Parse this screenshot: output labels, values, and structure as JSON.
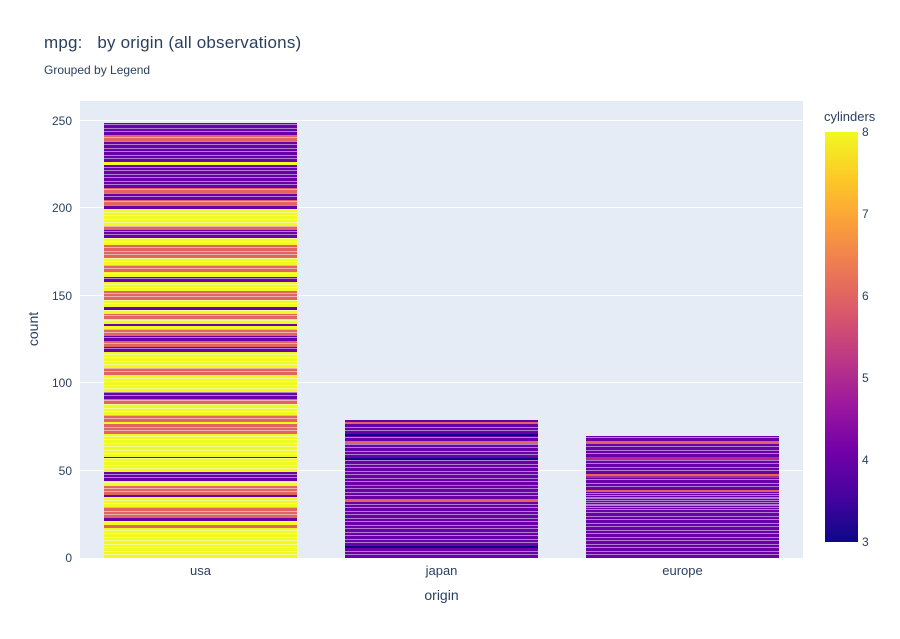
{
  "chart_data": {
    "type": "bar",
    "mode": "stacked-observations",
    "title": "mpg:   by origin (all observations)",
    "subtitle": "Grouped by Legend",
    "xlabel": "origin",
    "ylabel": "count",
    "categories": [
      "usa",
      "japan",
      "europe"
    ],
    "totals": [
      249,
      79,
      70
    ],
    "yticks": [
      0,
      50,
      100,
      150,
      200,
      250
    ],
    "ylim": [
      0,
      261.4
    ],
    "grid": true,
    "colors": {
      "text": "#2a3f5f",
      "plot_bg": "#e5ecf6",
      "grid": "#ffffff",
      "paper_bg": "#ffffff",
      "stripe_gap": "rgba(255,255,255,0.75)"
    },
    "colorbar": {
      "title": "cylinders",
      "min": 3,
      "max": 8,
      "ticks": [
        8,
        7,
        6,
        5,
        4,
        3
      ],
      "colorscale": [
        [
          0,
          "#0d0887"
        ],
        [
          0.1111,
          "#46039f"
        ],
        [
          0.2222,
          "#7201a8"
        ],
        [
          0.3333,
          "#9c179e"
        ],
        [
          0.4444,
          "#bd3786"
        ],
        [
          0.5556,
          "#d8576b"
        ],
        [
          0.6667,
          "#ed7953"
        ],
        [
          0.7778,
          "#fb9f3a"
        ],
        [
          0.8889,
          "#fdca26"
        ],
        [
          1,
          "#f0f921"
        ]
      ]
    },
    "cylinder_colors": {
      "3": "#0d0887",
      "4": "#6901a6",
      "5": "#b02a90",
      "6": "#e06561",
      "7": "#fca636",
      "8": "#f0f921"
    },
    "series": [
      {
        "name": "usa",
        "total": 249,
        "segments_bottom_to_top": [
          [
            8,
            17
          ],
          [
            6,
            2
          ],
          [
            8,
            2
          ],
          [
            4,
            2
          ],
          [
            6,
            6
          ],
          [
            8,
            6
          ],
          [
            4,
            1
          ],
          [
            6,
            5
          ],
          [
            8,
            3
          ],
          [
            4,
            5
          ],
          [
            8,
            8
          ],
          [
            4,
            1
          ],
          [
            8,
            13
          ],
          [
            6,
            6
          ],
          [
            8,
            1
          ],
          [
            6,
            4
          ],
          [
            8,
            6
          ],
          [
            6,
            3
          ],
          [
            4,
            4
          ],
          [
            8,
            10
          ],
          [
            6,
            4
          ],
          [
            8,
            9
          ],
          [
            4,
            3
          ],
          [
            6,
            3
          ],
          [
            4,
            3
          ],
          [
            6,
            4
          ],
          [
            8,
            2
          ],
          [
            4,
            1
          ],
          [
            8,
            3
          ],
          [
            6,
            3
          ],
          [
            8,
            2
          ],
          [
            4,
            2
          ],
          [
            8,
            4
          ],
          [
            6,
            5
          ],
          [
            8,
            5
          ],
          [
            4,
            3
          ],
          [
            8,
            3
          ],
          [
            6,
            4
          ],
          [
            8,
            4
          ],
          [
            6,
            7
          ],
          [
            8,
            4
          ],
          [
            4,
            5
          ],
          [
            6,
            2
          ],
          [
            8,
            10
          ],
          [
            4,
            2
          ],
          [
            6,
            3
          ],
          [
            4,
            4
          ],
          [
            6,
            3
          ],
          [
            4,
            13
          ],
          [
            8,
            2
          ],
          [
            4,
            12
          ],
          [
            6,
            3
          ],
          [
            4,
            7
          ]
        ]
      },
      {
        "name": "japan",
        "total": 79,
        "segments_bottom_to_top": [
          [
            4,
            6
          ],
          [
            3,
            1
          ],
          [
            4,
            25
          ],
          [
            6,
            2
          ],
          [
            4,
            7
          ],
          [
            6,
            1
          ],
          [
            4,
            14
          ],
          [
            3,
            1
          ],
          [
            4,
            8
          ],
          [
            6,
            2
          ],
          [
            4,
            3
          ],
          [
            3,
            1
          ],
          [
            4,
            6
          ],
          [
            6,
            1
          ],
          [
            4,
            1
          ]
        ]
      },
      {
        "name": "europe",
        "total": 70,
        "segments_bottom_to_top": [
          [
            4,
            38
          ],
          [
            6,
            1
          ],
          [
            4,
            7
          ],
          [
            5,
            1
          ],
          [
            6,
            1
          ],
          [
            4,
            8
          ],
          [
            5,
            2
          ],
          [
            4,
            7
          ],
          [
            6,
            2
          ],
          [
            4,
            3
          ]
        ]
      }
    ]
  }
}
